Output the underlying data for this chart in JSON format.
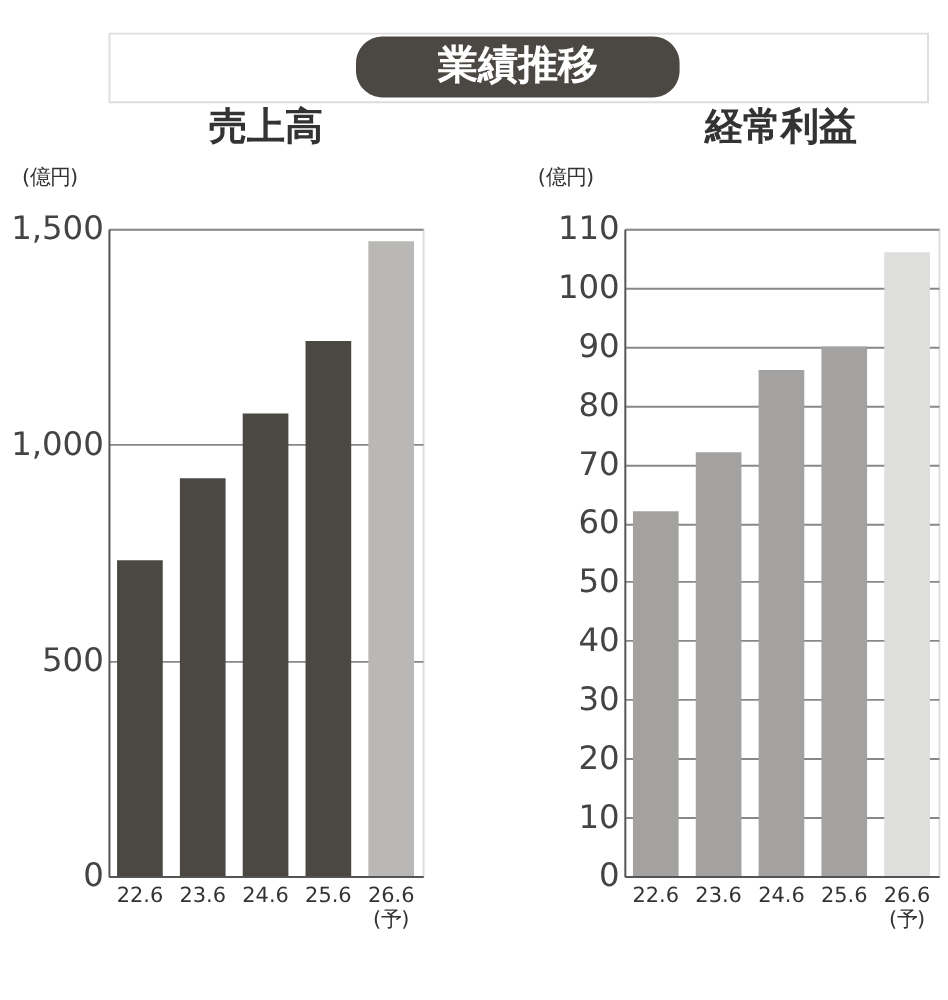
{
  "chart_data": [
    {
      "type": "bar",
      "title": "業績推移",
      "subtitle": "売上高",
      "ylabel": "(億円)",
      "categories": [
        "22.6",
        "23.6",
        "24.6",
        "25.6",
        "26.6\n(予)"
      ],
      "values": [
        732,
        922,
        1072,
        1240,
        1471
      ],
      "colors": [
        "#4b4843",
        "#4b4843",
        "#4b4843",
        "#4b4843",
        "#b9b8b6"
      ],
      "ylim": [
        0,
        1500
      ],
      "yticks": [
        0,
        500,
        {
          "value": 1000,
          "label": "1,000"
        },
        {
          "value": 1500,
          "label": "1,500"
        }
      ],
      "grid": "y"
    },
    {
      "type": "bar",
      "title": "経常利益",
      "ylabel": "(億円)",
      "categories": [
        "22.6",
        "23.6",
        "24.6",
        "25.6",
        "26.6\n(予)"
      ],
      "values": [
        62,
        72,
        86,
        90,
        106
      ],
      "colors": [
        "#a3a2a0",
        "#a3a2a0",
        "#a3a2a0",
        "#a3a2a0",
        "#dededd"
      ],
      "ylim": [
        0,
        110
      ],
      "yticks": [
        0,
        10,
        20,
        30,
        40,
        50,
        60,
        70,
        80,
        90,
        100,
        110
      ],
      "grid": "y"
    }
  ]
}
